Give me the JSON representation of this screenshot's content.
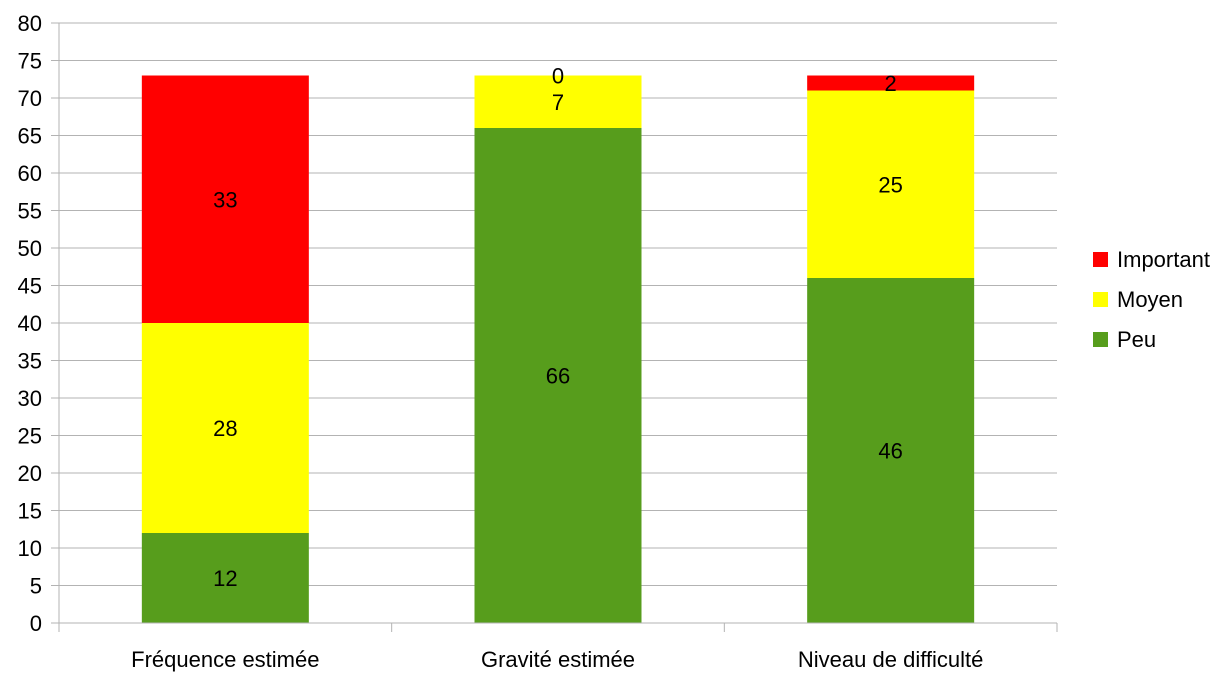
{
  "chart_data": {
    "type": "bar",
    "stacked": true,
    "categories": [
      "Fréquence estimée",
      "Gravité estimée",
      "Niveau de difficulté"
    ],
    "series": [
      {
        "name": "Peu",
        "color": "#579d1c",
        "values": [
          12,
          66,
          46
        ]
      },
      {
        "name": "Moyen",
        "color": "#ffff00",
        "values": [
          28,
          7,
          25
        ]
      },
      {
        "name": "Important",
        "color": "#ff0000",
        "values": [
          33,
          0,
          2
        ]
      }
    ],
    "ylim": [
      0,
      80
    ],
    "yticks": [
      "0",
      "5",
      "10",
      "15",
      "20",
      "25",
      "30",
      "35",
      "40",
      "45",
      "50",
      "55",
      "60",
      "65",
      "70",
      "75",
      "80"
    ],
    "grid": true,
    "legend": {
      "position": "right",
      "order": [
        "Important",
        "Moyen",
        "Peu"
      ]
    },
    "title": "",
    "xlabel": "",
    "ylabel": ""
  }
}
